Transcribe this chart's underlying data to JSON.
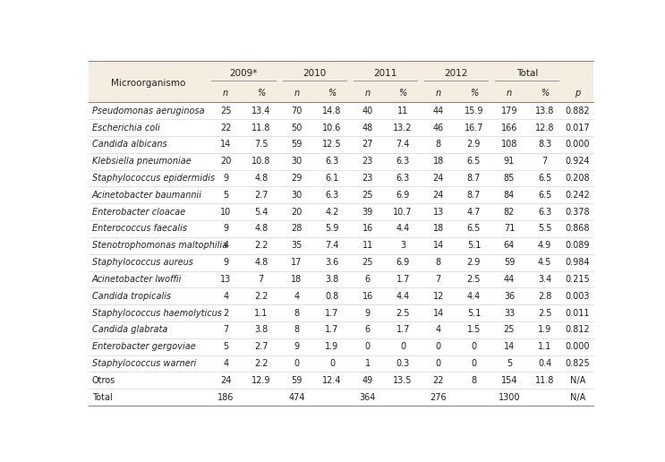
{
  "col_groups": [
    "2009*",
    "2010",
    "2011",
    "2012",
    "Total"
  ],
  "sub_headers": [
    "n",
    "%",
    "n",
    "%",
    "n",
    "%",
    "n",
    "%",
    "n",
    "%"
  ],
  "p_header": "p",
  "micro_header": "Microorganismo",
  "rows": [
    {
      "name": "Pseudomonas aeruginosa",
      "data": [
        "25",
        "13.4",
        "70",
        "14.8",
        "40",
        "11",
        "44",
        "15.9",
        "179",
        "13.8"
      ],
      "p": "0.882",
      "italic": true,
      "bold": false
    },
    {
      "name": "Escherichia coli",
      "data": [
        "22",
        "11.8",
        "50",
        "10.6",
        "48",
        "13.2",
        "46",
        "16.7",
        "166",
        "12.8"
      ],
      "p": "0.017",
      "italic": true,
      "bold": false
    },
    {
      "name": "Candida albicans",
      "data": [
        "14",
        "7.5",
        "59",
        "12.5",
        "27",
        "7.4",
        "8",
        "2.9",
        "108",
        "8.3"
      ],
      "p": "0.000",
      "italic": true,
      "bold": false
    },
    {
      "name": "Klebsiella pneumoniae",
      "data": [
        "20",
        "10.8",
        "30",
        "6.3",
        "23",
        "6.3",
        "18",
        "6.5",
        "91",
        "7"
      ],
      "p": "0.924",
      "italic": true,
      "bold": false
    },
    {
      "name": "Staphylococcus epidermidis",
      "data": [
        "9",
        "4.8",
        "29",
        "6.1",
        "23",
        "6.3",
        "24",
        "8.7",
        "85",
        "6.5"
      ],
      "p": "0.208",
      "italic": true,
      "bold": false
    },
    {
      "name": "Acinetobacter baumannii",
      "data": [
        "5",
        "2.7",
        "30",
        "6.3",
        "25",
        "6.9",
        "24",
        "8.7",
        "84",
        "6.5"
      ],
      "p": "0.242",
      "italic": true,
      "bold": false
    },
    {
      "name": "Enterobacter cloacae",
      "data": [
        "10",
        "5.4",
        "20",
        "4.2",
        "39",
        "10.7",
        "13",
        "4.7",
        "82",
        "6.3"
      ],
      "p": "0.378",
      "italic": true,
      "bold": false
    },
    {
      "name": "Enterococcus faecalis",
      "data": [
        "9",
        "4.8",
        "28",
        "5.9",
        "16",
        "4.4",
        "18",
        "6.5",
        "71",
        "5.5"
      ],
      "p": "0.868",
      "italic": true,
      "bold": false
    },
    {
      "name": "Stenotrophomonas maltophilia",
      "data": [
        "4",
        "2.2",
        "35",
        "7.4",
        "11",
        "3",
        "14",
        "5.1",
        "64",
        "4.9"
      ],
      "p": "0.089",
      "italic": true,
      "bold": false
    },
    {
      "name": "Staphylococcus aureus",
      "data": [
        "9",
        "4.8",
        "17",
        "3.6",
        "25",
        "6.9",
        "8",
        "2.9",
        "59",
        "4.5"
      ],
      "p": "0.984",
      "italic": true,
      "bold": false
    },
    {
      "name": "Acinetobacter lwoffii",
      "data": [
        "13",
        "7",
        "18",
        "3.8",
        "6",
        "1.7",
        "7",
        "2.5",
        "44",
        "3.4"
      ],
      "p": "0.215",
      "italic": true,
      "bold": false
    },
    {
      "name": "Candida tropicalis",
      "data": [
        "4",
        "2.2",
        "4",
        "0.8",
        "16",
        "4.4",
        "12",
        "4.4",
        "36",
        "2.8"
      ],
      "p": "0.003",
      "italic": true,
      "bold": false
    },
    {
      "name": "Staphylococcus haemolyticus",
      "data": [
        "2",
        "1.1",
        "8",
        "1.7",
        "9",
        "2.5",
        "14",
        "5.1",
        "33",
        "2.5"
      ],
      "p": "0.011",
      "italic": true,
      "bold": false
    },
    {
      "name": "Candida glabrata",
      "data": [
        "7",
        "3.8",
        "8",
        "1.7",
        "6",
        "1.7",
        "4",
        "1.5",
        "25",
        "1.9"
      ],
      "p": "0.812",
      "italic": true,
      "bold": false
    },
    {
      "name": "Enterobacter gergoviae",
      "data": [
        "5",
        "2.7",
        "9",
        "1.9",
        "0",
        "0",
        "0",
        "0",
        "14",
        "1.1"
      ],
      "p": "0.000",
      "italic": true,
      "bold": false
    },
    {
      "name": "Staphylococcus warneri",
      "data": [
        "4",
        "2.2",
        "0",
        "0",
        "1",
        "0.3",
        "0",
        "0",
        "5",
        "0.4"
      ],
      "p": "0.825",
      "italic": true,
      "bold": false
    },
    {
      "name": "Otros",
      "data": [
        "24",
        "12.9",
        "59",
        "12.4",
        "49",
        "13.5",
        "22",
        "8",
        "154",
        "11.8"
      ],
      "p": "N/A",
      "italic": false,
      "bold": false
    },
    {
      "name": "Total",
      "data": [
        "186",
        "",
        "474",
        "",
        "364",
        "",
        "276",
        "",
        "1300",
        ""
      ],
      "p": "N/A",
      "italic": false,
      "bold": false
    }
  ],
  "header_bg": "#f5ede0",
  "white_bg": "#ffffff",
  "line_color_strong": "#888888",
  "line_color_light": "#cccccc",
  "text_color": "#222222",
  "font_size": 7.0,
  "header_font_size": 7.5
}
